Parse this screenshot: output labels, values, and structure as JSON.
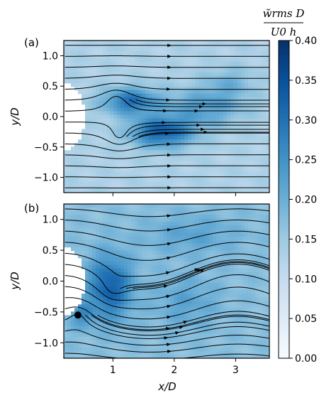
{
  "chart_data": {
    "type": "heatmap",
    "title": "",
    "xlabel": "x/D",
    "ylabel": "y/D",
    "xlim": [
      0.2,
      3.55
    ],
    "ylim": [
      -1.25,
      1.25
    ],
    "x_ticks": [
      1,
      2,
      3
    ],
    "y_ticks": [
      1.0,
      0.5,
      0.0,
      -0.5,
      -1.0
    ],
    "x_tick_labels": [
      "1",
      "2",
      "3"
    ],
    "y_tick_labels": [
      "1.0",
      "0.5",
      "0.0",
      "−0.5",
      "−1.0"
    ],
    "colorbar": {
      "label_numerator": "w̃rms D",
      "label_denominator": "U0 h",
      "range": [
        0.0,
        0.4
      ],
      "ticks": [
        0.4,
        0.35,
        0.3,
        0.25,
        0.2,
        0.15,
        0.1,
        0.05,
        0.0
      ],
      "tick_labels": [
        "0.40",
        "0.35",
        "0.30",
        "0.25",
        "0.20",
        "0.15",
        "0.10",
        "0.05",
        "0.00"
      ],
      "colormap": "Blues",
      "color_low": "#f7fbff",
      "color_high": "#08306b"
    },
    "panels": [
      {
        "label": "(a)",
        "field": "wrms",
        "background_level": 0.13,
        "hotspots": [
          {
            "x": 1.3,
            "y": 0.25,
            "sx": 0.45,
            "sy": 0.22,
            "a": 0.17
          },
          {
            "x": 1.8,
            "y": -0.25,
            "sx": 0.5,
            "sy": 0.25,
            "a": 0.2
          },
          {
            "x": 2.5,
            "y": 0.15,
            "sx": 0.6,
            "sy": 0.3,
            "a": 0.1
          },
          {
            "x": 2.9,
            "y": 0.55,
            "sx": 0.4,
            "sy": 0.25,
            "a": 0.06
          }
        ],
        "vortices": [
          {
            "x": 1.05,
            "y": 0.28,
            "strength": -1.0
          },
          {
            "x": 1.1,
            "y": -0.33,
            "strength": 1.0
          }
        ]
      },
      {
        "label": "(b)",
        "field": "wrms",
        "background_level": 0.17,
        "hotspots": [
          {
            "x": 0.95,
            "y": -0.1,
            "sx": 0.35,
            "sy": 0.5,
            "a": 0.16
          },
          {
            "x": 2.2,
            "y": -0.35,
            "sx": 0.5,
            "sy": 0.4,
            "a": 0.05
          },
          {
            "x": 2.3,
            "y": 0.75,
            "sx": 0.7,
            "sy": 0.3,
            "a": 0.05
          },
          {
            "x": 0.5,
            "y": -0.55,
            "sx": 0.2,
            "sy": 0.2,
            "a": 0.08
          }
        ],
        "vortices": [
          {
            "x": 1.0,
            "y": -0.12,
            "strength": 1.0
          },
          {
            "x": 0.43,
            "y": -0.55,
            "strength": -0.8
          }
        ]
      }
    ]
  }
}
